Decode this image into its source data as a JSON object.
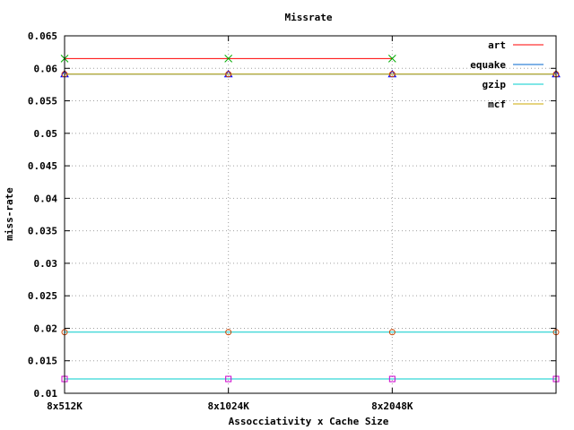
{
  "chart_data": {
    "type": "line",
    "title": "Missrate",
    "xlabel": "Assocciativity x Cache Size",
    "ylabel": "miss-rate",
    "categories": [
      "8x512K",
      "8x1024K",
      "8x2048K",
      ""
    ],
    "ylim": [
      0.01,
      0.065
    ],
    "yticks": [
      "0.01",
      "0.015",
      "0.02",
      "0.025",
      "0.03",
      "0.035",
      "0.04",
      "0.045",
      "0.05",
      "0.055",
      "0.06",
      "0.065"
    ],
    "grid": true,
    "legend_position": "top-right",
    "series": [
      {
        "name": "art",
        "color": "#ff0000",
        "marker_color": "#00aa00",
        "marker": "x",
        "values": [
          0.0615,
          0.0615,
          0.0615,
          null
        ]
      },
      {
        "name": "equake",
        "color": "#0066cc",
        "marker_color": "#0000ff",
        "marker": "triangle",
        "values": [
          0.0591,
          0.0591,
          0.0591,
          0.0591
        ]
      },
      {
        "name": "gzip",
        "color": "#00cccc",
        "marker_color": "#cc00cc",
        "marker": "square",
        "values": [
          0.0122,
          0.0122,
          0.0122,
          0.0122
        ]
      },
      {
        "name": "mcf",
        "color": "#ccaa00",
        "marker_color": "#cc4400",
        "marker": "circle",
        "values": [
          0.0591,
          0.0591,
          0.0591,
          0.0591
        ]
      },
      {
        "name": "",
        "color": "#00cccc",
        "marker_color": "#cc4400",
        "marker": "circle",
        "values": [
          0.0194,
          0.0194,
          0.0194,
          0.0194
        ]
      }
    ]
  }
}
